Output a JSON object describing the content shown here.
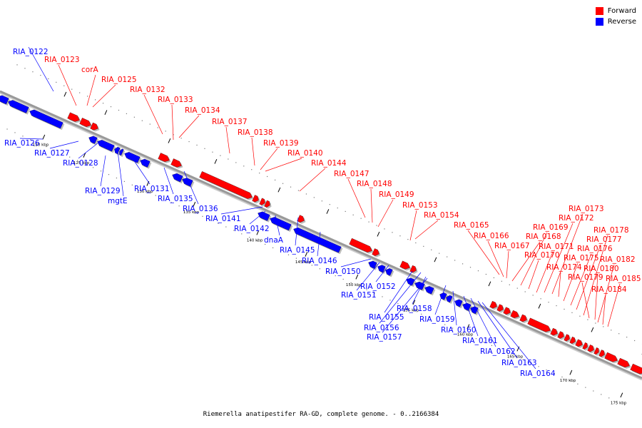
{
  "caption": "Riemerella anatipestifer RA-GD, complete genome. - 0..2166384",
  "legend": [
    {
      "label": "Forward",
      "color": "#ff0000"
    },
    {
      "label": "Reverse",
      "color": "#0000ff"
    }
  ],
  "colors": {
    "forward": "#ff0000",
    "reverse": "#0000ff",
    "backbone": "#999999"
  },
  "ticks": [
    {
      "kbp": 120,
      "label": "120 kbp"
    },
    {
      "kbp": 125,
      "label": "125 kbp"
    },
    {
      "kbp": 130,
      "label": "130 kbp"
    },
    {
      "kbp": 135,
      "label": "135 kbp"
    },
    {
      "kbp": 140,
      "label": "140 kbp"
    },
    {
      "kbp": 145,
      "label": "145 kbp"
    },
    {
      "kbp": 150,
      "label": "150 kbp"
    },
    {
      "kbp": 155,
      "label": "155 kbp"
    },
    {
      "kbp": 160,
      "label": "160 kbp"
    },
    {
      "kbp": 165,
      "label": "165 kbp"
    },
    {
      "kbp": 170,
      "label": "170 kbp"
    },
    {
      "kbp": 175,
      "label": "175 kbp"
    }
  ],
  "forward_genes": [
    {
      "name": "RIA_0123"
    },
    {
      "name": "corA"
    },
    {
      "name": "RIA_0125"
    },
    {
      "name": "RIA_0132"
    },
    {
      "name": "RIA_0133"
    },
    {
      "name": "RIA_0134"
    },
    {
      "name": "RIA_0137"
    },
    {
      "name": "RIA_0138"
    },
    {
      "name": "RIA_0139"
    },
    {
      "name": "RIA_0140"
    },
    {
      "name": "RIA_0144"
    },
    {
      "name": "RIA_0147"
    },
    {
      "name": "RIA_0148"
    },
    {
      "name": "RIA_0149"
    },
    {
      "name": "RIA_0153"
    },
    {
      "name": "RIA_0154"
    },
    {
      "name": "RIA_0165"
    },
    {
      "name": "RIA_0166"
    },
    {
      "name": "RIA_0167"
    },
    {
      "name": "RIA_0168"
    },
    {
      "name": "RIA_0169"
    },
    {
      "name": "RIA_0170"
    },
    {
      "name": "RIA_0171"
    },
    {
      "name": "RIA_0172"
    },
    {
      "name": "RIA_0173"
    },
    {
      "name": "RIA_0174"
    },
    {
      "name": "RIA_0175"
    },
    {
      "name": "RIA_0176"
    },
    {
      "name": "RIA_0177"
    },
    {
      "name": "RIA_0178"
    },
    {
      "name": "RIA_0179"
    },
    {
      "name": "RIA_0180"
    },
    {
      "name": "RIA_0182"
    },
    {
      "name": "RIA_0184"
    },
    {
      "name": "RIA_0185"
    }
  ],
  "reverse_genes": [
    {
      "name": "RIA_0122"
    },
    {
      "name": "RIA_0126"
    },
    {
      "name": "RIA_0127"
    },
    {
      "name": "RIA_0128"
    },
    {
      "name": "RIA_0129"
    },
    {
      "name": "mgtE"
    },
    {
      "name": "RIA_0131"
    },
    {
      "name": "RIA_0135"
    },
    {
      "name": "RIA_0136"
    },
    {
      "name": "RIA_0141"
    },
    {
      "name": "RIA_0142"
    },
    {
      "name": "dnaA"
    },
    {
      "name": "RIA_0145"
    },
    {
      "name": "RIA_0146"
    },
    {
      "name": "RIA_0150"
    },
    {
      "name": "RIA_0151"
    },
    {
      "name": "RIA_0152"
    },
    {
      "name": "RIA_0155"
    },
    {
      "name": "RIA_0156"
    },
    {
      "name": "RIA_0157"
    },
    {
      "name": "RIA_0158"
    },
    {
      "name": "RIA_0159"
    },
    {
      "name": "RIA_0160"
    },
    {
      "name": "RIA_0161"
    },
    {
      "name": "RIA_0162"
    },
    {
      "name": "RIA_0163"
    },
    {
      "name": "RIA_0164"
    }
  ]
}
